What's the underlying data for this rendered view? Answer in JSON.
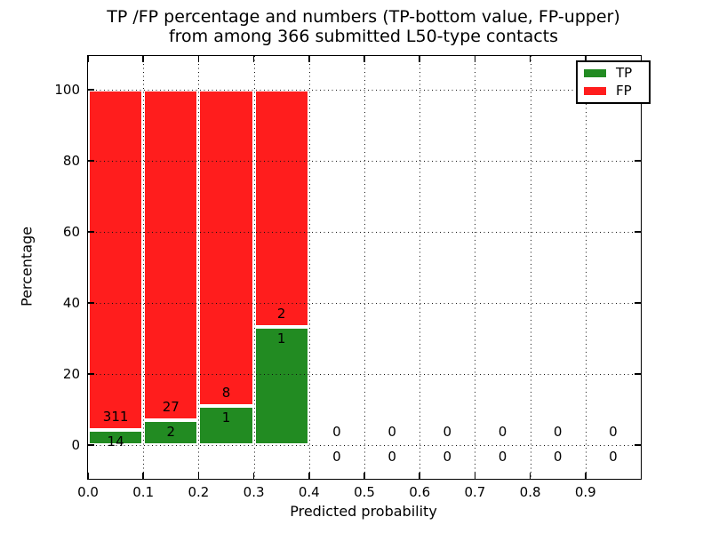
{
  "title": {
    "line1": "TP /FP percentage and numbers (TP-bottom value, FP-upper)",
    "line2": "from among 366 submitted L50-type contacts"
  },
  "chart_data": {
    "type": "bar",
    "stacked": true,
    "title": "TP /FP percentage and numbers (TP-bottom value, FP-upper) from among 366 submitted L50-type contacts",
    "xlabel": "Predicted probability",
    "ylabel": "Percentage",
    "xlim": [
      0.0,
      1.0
    ],
    "ylim": [
      -9.5,
      109.5
    ],
    "grid": "dotted",
    "x_tick_values": [
      0.0,
      0.1,
      0.2,
      0.3,
      0.4,
      0.5,
      0.6,
      0.7,
      0.8,
      0.9
    ],
    "x_tick_labels": [
      "0.0",
      "0.1",
      "0.2",
      "0.3",
      "0.4",
      "0.5",
      "0.6",
      "0.7",
      "0.8",
      "0.9"
    ],
    "y_tick_values": [
      0,
      20,
      40,
      60,
      80,
      100
    ],
    "y_tick_labels": [
      "0",
      "20",
      "40",
      "60",
      "80",
      "100"
    ],
    "series": [
      {
        "name": "TP",
        "color": "#228b22"
      },
      {
        "name": "FP",
        "color": "#ff1d1d"
      }
    ],
    "legend": {
      "position": "upper right",
      "entries": [
        {
          "label": "TP",
          "color": "#228b22"
        },
        {
          "label": "FP",
          "color": "#ff1d1d"
        }
      ]
    },
    "bins": [
      {
        "range": [
          0.0,
          0.1
        ],
        "tp": 14,
        "fp": 311
      },
      {
        "range": [
          0.1,
          0.2
        ],
        "tp": 2,
        "fp": 27
      },
      {
        "range": [
          0.2,
          0.3
        ],
        "tp": 1,
        "fp": 8
      },
      {
        "range": [
          0.3,
          0.4
        ],
        "tp": 1,
        "fp": 2
      },
      {
        "range": [
          0.4,
          0.5
        ],
        "tp": 0,
        "fp": 0
      },
      {
        "range": [
          0.5,
          0.6
        ],
        "tp": 0,
        "fp": 0
      },
      {
        "range": [
          0.6,
          0.7
        ],
        "tp": 0,
        "fp": 0
      },
      {
        "range": [
          0.7,
          0.8
        ],
        "tp": 0,
        "fp": 0
      },
      {
        "range": [
          0.8,
          0.9
        ],
        "tp": 0,
        "fp": 0
      },
      {
        "range": [
          0.9,
          1.0
        ],
        "tp": 0,
        "fp": 0
      }
    ],
    "bar_total_is_percent": 100
  }
}
